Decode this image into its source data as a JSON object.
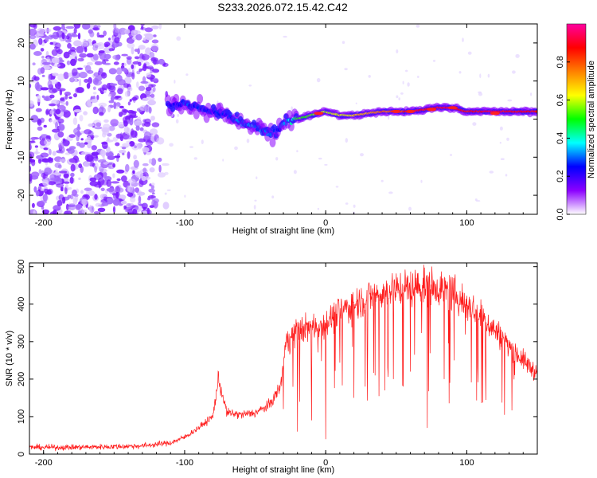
{
  "title": "S233.2026.072.15.42.C42",
  "chart_data": [
    {
      "type": "heatmap",
      "name": "spectrogram",
      "xlabel": "Height of straight line (km)",
      "ylabel": "Frequency (Hz)",
      "xlim": [
        -210,
        150
      ],
      "ylim": [
        -25,
        25
      ],
      "xticks": [
        -200,
        -100,
        0,
        100
      ],
      "yticks": [
        -20,
        -10,
        0,
        10,
        20
      ],
      "xtick_labels": [
        "-200",
        "-100",
        "0",
        "100"
      ],
      "ytick_labels": [
        "-20",
        "-10",
        "0",
        "10",
        "20"
      ],
      "colorbar": {
        "label": "Normalized spectral amplitude",
        "range": [
          0,
          1
        ],
        "ticks": [
          0.0,
          0.2,
          0.4,
          0.6,
          0.8
        ],
        "tick_labels": [
          "0.0",
          "0.2",
          "0.4",
          "0.6",
          "0.8"
        ],
        "colormap": [
          "#ffffff",
          "#8b00ff",
          "#0000ff",
          "#00ffff",
          "#00ff00",
          "#ffff00",
          "#ff8000",
          "#ff0000",
          "#ff00a0"
        ]
      },
      "ridge": {
        "x": [
          -110,
          -100,
          -90,
          -80,
          -70,
          -60,
          -50,
          -40,
          -35,
          -30,
          -20,
          -10,
          0,
          10,
          20,
          40,
          60,
          80,
          90,
          100,
          120,
          150
        ],
        "freq_hz": [
          4,
          4,
          3,
          2,
          1,
          -1,
          -2,
          -4,
          -3,
          -1,
          0,
          1,
          2,
          1,
          1,
          2,
          2,
          3,
          3,
          2,
          2,
          2
        ],
        "amplitude": [
          0.2,
          0.25,
          0.25,
          0.25,
          0.25,
          0.3,
          0.3,
          0.3,
          0.25,
          0.3,
          0.5,
          0.55,
          0.6,
          0.6,
          0.65,
          0.75,
          0.85,
          0.9,
          0.95,
          0.85,
          0.9,
          0.85
        ]
      },
      "noise_region_x": [
        -210,
        -120
      ]
    },
    {
      "type": "line",
      "name": "snr",
      "xlabel": "Height of straight line (km)",
      "ylabel": "SNR (10 * v/v)",
      "xlim": [
        -210,
        150
      ],
      "ylim": [
        0,
        510
      ],
      "xticks": [
        -200,
        -100,
        0,
        100
      ],
      "yticks": [
        0,
        100,
        200,
        300,
        400,
        500
      ],
      "xtick_labels": [
        "-200",
        "-100",
        "0",
        "100"
      ],
      "ytick_labels": [
        "0",
        "100",
        "200",
        "300",
        "400",
        "500"
      ],
      "color": "#ff0000",
      "envelope": {
        "x": [
          -210,
          -180,
          -150,
          -130,
          -110,
          -100,
          -90,
          -80,
          -76,
          -70,
          -60,
          -50,
          -40,
          -32,
          -28,
          -20,
          -10,
          0,
          10,
          20,
          30,
          40,
          50,
          60,
          70,
          80,
          90,
          100,
          110,
          120,
          130,
          140,
          150
        ],
        "y": [
          18,
          18,
          20,
          22,
          30,
          45,
          70,
          100,
          200,
          110,
          105,
          110,
          130,
          180,
          300,
          330,
          340,
          350,
          380,
          400,
          420,
          430,
          440,
          445,
          450,
          445,
          430,
          400,
          370,
          330,
          290,
          250,
          215
        ]
      },
      "dropouts": [
        {
          "x": -30,
          "y": 120
        },
        {
          "x": -20,
          "y": 60
        },
        {
          "x": -10,
          "y": 90
        },
        {
          "x": 0,
          "y": 40
        },
        {
          "x": 10,
          "y": 120
        },
        {
          "x": 20,
          "y": 150
        },
        {
          "x": 28,
          "y": 180
        },
        {
          "x": 35,
          "y": 210
        },
        {
          "x": 42,
          "y": 170
        },
        {
          "x": 48,
          "y": 200
        },
        {
          "x": 55,
          "y": 180
        },
        {
          "x": 60,
          "y": 220
        },
        {
          "x": 72,
          "y": 70
        },
        {
          "x": 84,
          "y": 200
        },
        {
          "x": 88,
          "y": 190
        },
        {
          "x": 91,
          "y": 250
        }
      ]
    }
  ]
}
